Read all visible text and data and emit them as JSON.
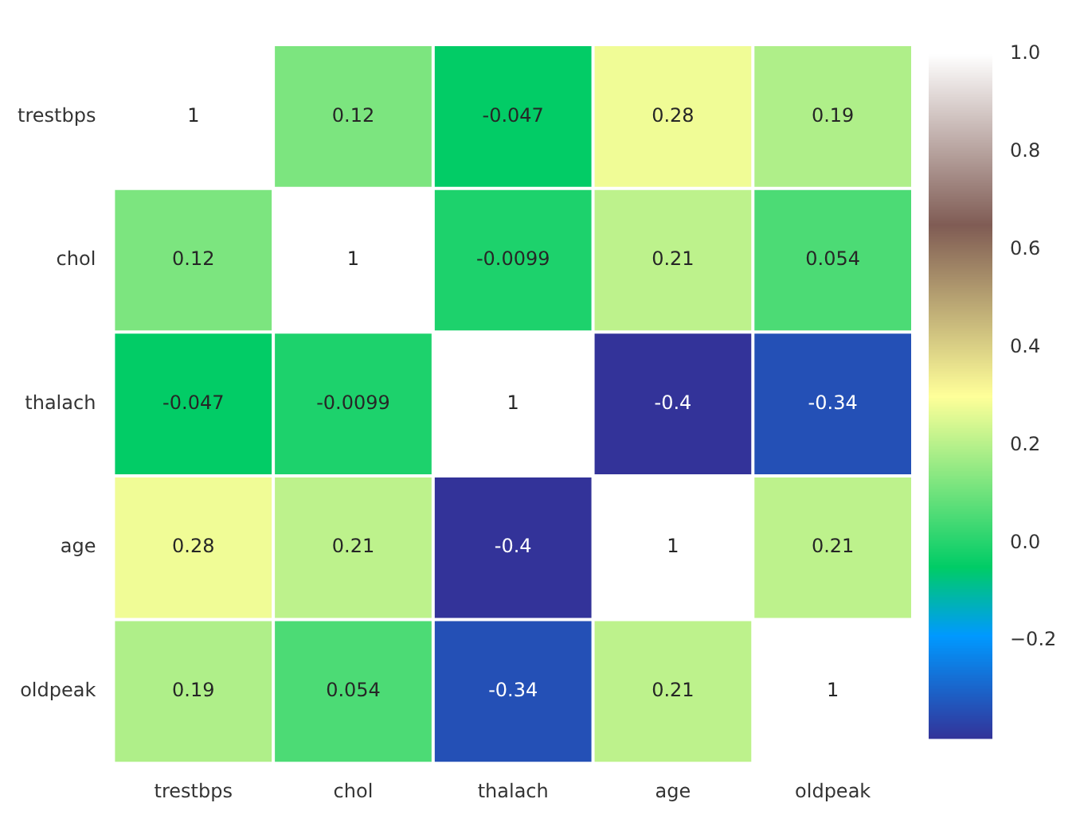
{
  "chart_data": {
    "type": "heatmap",
    "categories": [
      "trestbps",
      "chol",
      "thalach",
      "age",
      "oldpeak"
    ],
    "y_categories": [
      "trestbps",
      "chol",
      "thalach",
      "age",
      "oldpeak"
    ],
    "cells": [
      [
        1,
        0.12,
        -0.047,
        0.28,
        0.19
      ],
      [
        0.12,
        1,
        -0.0099,
        0.21,
        0.054
      ],
      [
        -0.047,
        -0.0099,
        1,
        -0.4,
        -0.34
      ],
      [
        0.28,
        0.21,
        -0.4,
        1,
        0.21
      ],
      [
        0.19,
        0.054,
        -0.34,
        0.21,
        1
      ]
    ],
    "data_labels": true,
    "clim": [
      -0.4,
      1
    ],
    "cticks": [
      {
        "value": -0.2,
        "label": "−0.2"
      },
      {
        "value": 0,
        "label": "0.0"
      },
      {
        "value": 0.2,
        "label": "0.2"
      },
      {
        "value": 0.4,
        "label": "0.4"
      },
      {
        "value": 0.6,
        "label": "0.6"
      },
      {
        "value": 0.8,
        "label": "0.8"
      },
      {
        "value": 1,
        "label": "1.0"
      }
    ]
  }
}
